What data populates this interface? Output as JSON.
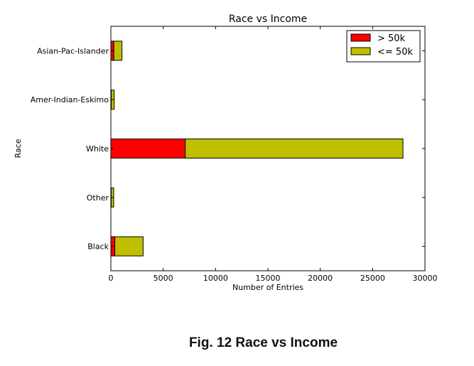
{
  "chart_data": {
    "type": "bar",
    "orientation": "horizontal",
    "stacked": true,
    "title": "Race vs Income",
    "xlabel": "Number of Entries",
    "ylabel": "Race",
    "xlim": [
      0,
      30000
    ],
    "xticks": [
      0,
      5000,
      10000,
      15000,
      20000,
      25000,
      30000
    ],
    "categories": [
      "Asian-Pac-Islander",
      "Amer-Indian-Eskimo",
      "White",
      "Other",
      "Black"
    ],
    "series": [
      {
        "name": "> 50k",
        "color": "#ff0000",
        "values": [
          280,
          40,
          7100,
          30,
          380
        ]
      },
      {
        "name": "<= 50k",
        "color": "#bfbf00",
        "values": [
          780,
          280,
          20800,
          240,
          2700
        ]
      }
    ],
    "legend": "top-right",
    "grid": false
  },
  "caption": "Fig. 12 Race vs Income"
}
